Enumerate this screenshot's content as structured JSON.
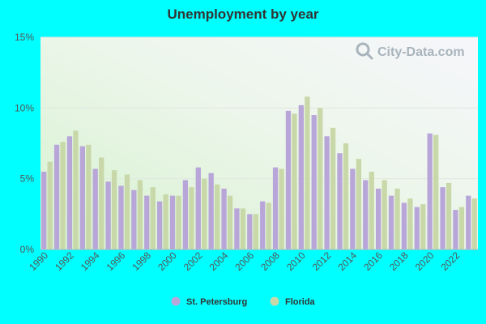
{
  "chart_data": {
    "type": "bar",
    "title": "Unemployment by year",
    "xlabel": "",
    "ylabel": "",
    "ylim": [
      0,
      15
    ],
    "y_ticks": [
      {
        "value": 0,
        "label": "0%"
      },
      {
        "value": 5,
        "label": "5%"
      },
      {
        "value": 10,
        "label": "10%"
      },
      {
        "value": 15,
        "label": "15%"
      }
    ],
    "x_tick_labels": [
      "1990",
      "1992",
      "1994",
      "1996",
      "1998",
      "2000",
      "2002",
      "2004",
      "2006",
      "2008",
      "2010",
      "2012",
      "2014",
      "2016",
      "2018",
      "2020",
      "2022"
    ],
    "categories": [
      "1990",
      "1991",
      "1992",
      "1993",
      "1994",
      "1995",
      "1996",
      "1997",
      "1998",
      "1999",
      "2000",
      "2001",
      "2002",
      "2003",
      "2004",
      "2005",
      "2006",
      "2007",
      "2008",
      "2009",
      "2010",
      "2011",
      "2012",
      "2013",
      "2014",
      "2015",
      "2016",
      "2017",
      "2018",
      "2019",
      "2020",
      "2021",
      "2022",
      "2023"
    ],
    "series": [
      {
        "name": "St. Petersburg",
        "color": "#b8a6d9",
        "values": [
          5.5,
          7.4,
          8.0,
          7.3,
          5.7,
          4.8,
          4.5,
          4.2,
          3.8,
          3.4,
          3.8,
          4.9,
          5.8,
          5.4,
          4.3,
          2.9,
          2.5,
          3.4,
          5.8,
          9.8,
          10.2,
          9.5,
          8.0,
          6.8,
          5.7,
          4.9,
          4.3,
          3.8,
          3.3,
          3.0,
          8.2,
          4.4,
          2.8,
          3.8
        ]
      },
      {
        "name": "Florida",
        "color": "#c8d8a8",
        "values": [
          6.2,
          7.6,
          8.4,
          7.4,
          6.5,
          5.6,
          5.3,
          4.9,
          4.4,
          3.9,
          3.8,
          4.4,
          5.0,
          4.6,
          3.8,
          2.9,
          2.5,
          3.3,
          5.7,
          9.6,
          10.8,
          10.0,
          8.6,
          7.5,
          6.4,
          5.5,
          4.9,
          4.3,
          3.6,
          3.2,
          8.1,
          4.7,
          3.0,
          3.6
        ]
      }
    ],
    "grid": true,
    "legend_position": "bottom"
  },
  "watermark": {
    "text": "City-Data.com",
    "icon": "magnifier-icon"
  },
  "colors": {
    "page_background": "#00ffff",
    "gridline": "#e0e6e0",
    "axis_line": "#bbbbbb"
  }
}
